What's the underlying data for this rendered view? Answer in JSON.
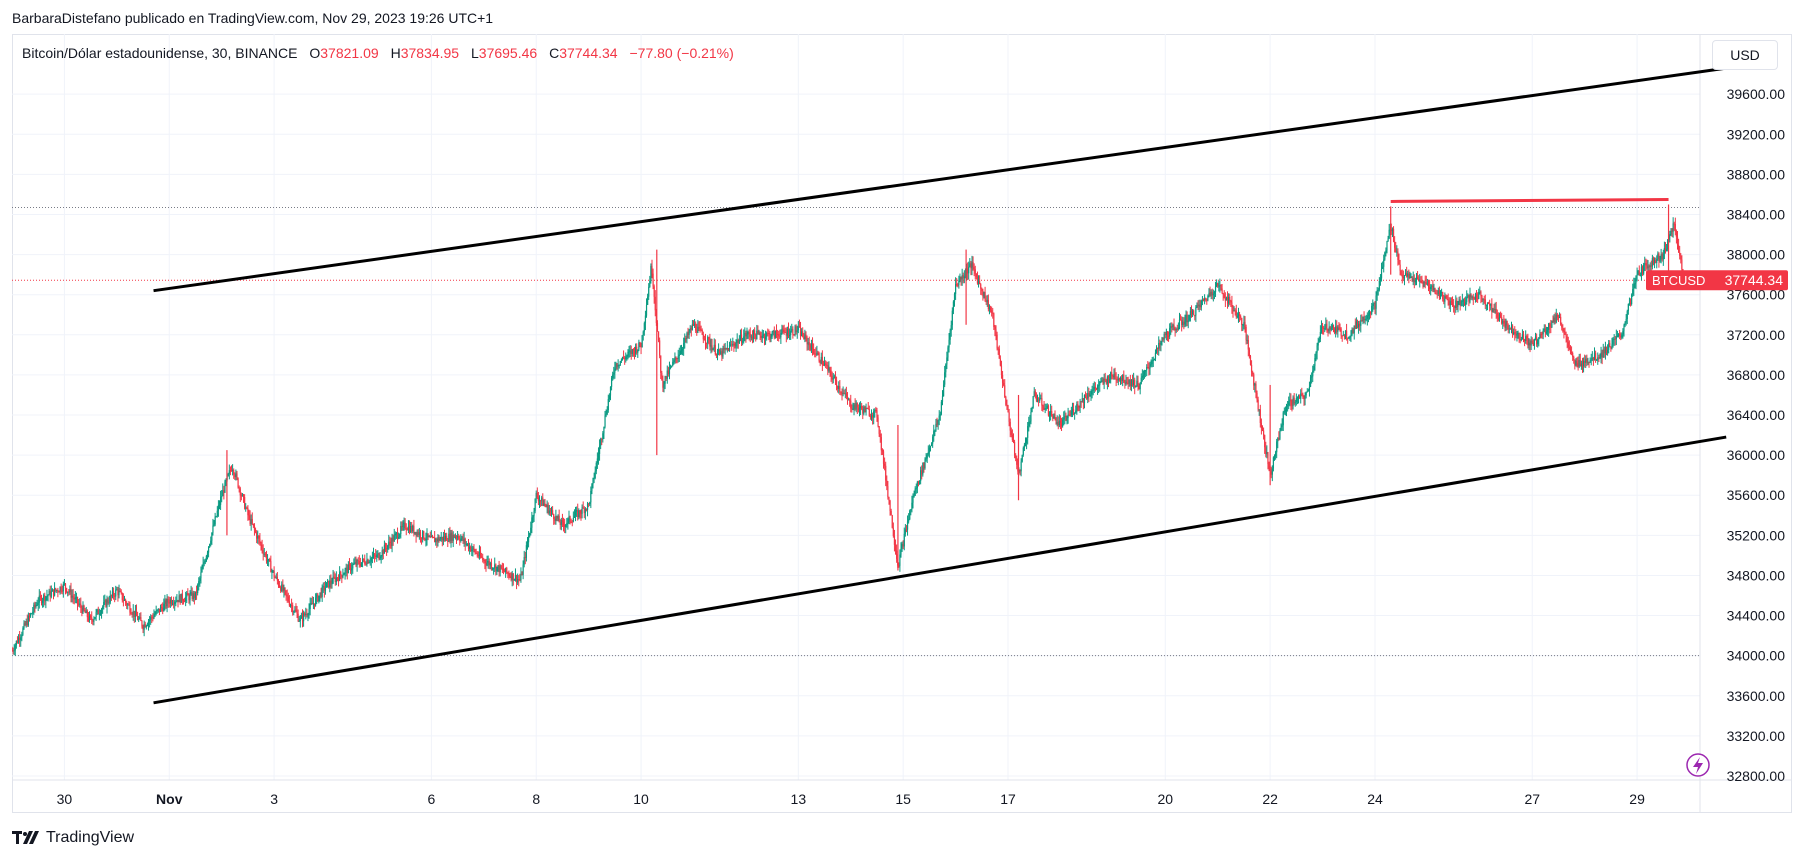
{
  "header": {
    "published_by": "BarbaraDistefano publicado en TradingView.com, Nov 29, 2023 19:26 UTC+1"
  },
  "legend": {
    "symbol": "Bitcoin/Dólar estadounidense, 30, BINANCE",
    "open_label": "O",
    "open": "37821.09",
    "high_label": "H",
    "high": "37834.95",
    "low_label": "L",
    "low": "37695.46",
    "close_label": "C",
    "close": "37744.34",
    "change": "−77.80 (−0.21%)"
  },
  "currency_button": "USD",
  "price_tag": {
    "ticker": "BTCUSD",
    "price": "37744.34"
  },
  "footer": {
    "brand": "TradingView"
  },
  "colors": {
    "up": "#089981",
    "down": "#f23645",
    "trendline": "#000000",
    "resistance": "#f23645",
    "grid": "#f0f3fa",
    "price_line": "#f23645"
  },
  "chart_data": {
    "type": "candlestick",
    "symbol": "BTCUSD",
    "timeframe": "30",
    "y_axis": {
      "ticks": [
        "39600.00",
        "39200.00",
        "38800.00",
        "38400.00",
        "38000.00",
        "37600.00",
        "37200.00",
        "36800.00",
        "36400.00",
        "36000.00",
        "35600.00",
        "35200.00",
        "34800.00",
        "34400.00",
        "34000.00",
        "33600.00",
        "33200.00",
        "32800.00"
      ],
      "range": [
        32760,
        40200
      ]
    },
    "x_axis": {
      "ticks": [
        {
          "label": "30",
          "day": 0
        },
        {
          "label": "Nov",
          "day": 2
        },
        {
          "label": "3",
          "day": 4
        },
        {
          "label": "6",
          "day": 7
        },
        {
          "label": "8",
          "day": 9
        },
        {
          "label": "10",
          "day": 11
        },
        {
          "label": "13",
          "day": 14
        },
        {
          "label": "15",
          "day": 16
        },
        {
          "label": "17",
          "day": 18
        },
        {
          "label": "20",
          "day": 21
        },
        {
          "label": "22",
          "day": 23
        },
        {
          "label": "24",
          "day": 25
        },
        {
          "label": "27",
          "day": 28
        },
        {
          "label": "29",
          "day": 30
        }
      ],
      "range": [
        -1,
        31.2
      ]
    },
    "horizontal_levels": [
      38470,
      37744.34,
      34000
    ],
    "price_path": [
      [
        -1,
        34050
      ],
      [
        -0.5,
        34550
      ],
      [
        0,
        34700
      ],
      [
        0.5,
        34350
      ],
      [
        1,
        34650
      ],
      [
        1.5,
        34300
      ],
      [
        2,
        34550
      ],
      [
        2.5,
        34600
      ],
      [
        3,
        35600
      ],
      [
        3.2,
        35900
      ],
      [
        3.5,
        35400
      ],
      [
        4,
        34800
      ],
      [
        4.5,
        34350
      ],
      [
        5,
        34700
      ],
      [
        5.5,
        34900
      ],
      [
        6,
        35000
      ],
      [
        6.5,
        35300
      ],
      [
        7,
        35150
      ],
      [
        7.5,
        35200
      ],
      [
        8,
        34950
      ],
      [
        8.7,
        34750
      ],
      [
        9,
        35600
      ],
      [
        9.5,
        35300
      ],
      [
        10,
        35500
      ],
      [
        10.5,
        36900
      ],
      [
        11,
        37100
      ],
      [
        11.2,
        37900
      ],
      [
        11.4,
        36700
      ],
      [
        12,
        37300
      ],
      [
        12.5,
        37000
      ],
      [
        13,
        37200
      ],
      [
        13.5,
        37200
      ],
      [
        14,
        37250
      ],
      [
        14.5,
        36900
      ],
      [
        15,
        36500
      ],
      [
        15.5,
        36400
      ],
      [
        15.9,
        34900
      ],
      [
        16.2,
        35600
      ],
      [
        16.7,
        36400
      ],
      [
        17,
        37700
      ],
      [
        17.3,
        37900
      ],
      [
        17.7,
        37400
      ],
      [
        18,
        36400
      ],
      [
        18.2,
        35800
      ],
      [
        18.5,
        36600
      ],
      [
        19,
        36300
      ],
      [
        19.5,
        36600
      ],
      [
        20,
        36800
      ],
      [
        20.5,
        36700
      ],
      [
        21,
        37200
      ],
      [
        21.5,
        37400
      ],
      [
        22,
        37700
      ],
      [
        22.5,
        37300
      ],
      [
        22.8,
        36400
      ],
      [
        23,
        35800
      ],
      [
        23.3,
        36500
      ],
      [
        23.7,
        36600
      ],
      [
        24,
        37300
      ],
      [
        24.5,
        37200
      ],
      [
        25,
        37500
      ],
      [
        25.3,
        38300
      ],
      [
        25.5,
        37800
      ],
      [
        26,
        37700
      ],
      [
        26.5,
        37500
      ],
      [
        27,
        37600
      ],
      [
        27.5,
        37300
      ],
      [
        28,
        37100
      ],
      [
        28.5,
        37400
      ],
      [
        28.8,
        36900
      ],
      [
        29.3,
        37000
      ],
      [
        29.7,
        37200
      ],
      [
        30,
        37800
      ],
      [
        30.2,
        37900
      ],
      [
        30.5,
        38000
      ],
      [
        30.7,
        38300
      ],
      [
        30.9,
        37744.34
      ]
    ],
    "trendlines": [
      {
        "name": "channel-upper",
        "from": [
          1.7,
          37640
        ],
        "to": [
          31.7,
          39860
        ]
      },
      {
        "name": "channel-lower",
        "from": [
          1.7,
          33530
        ],
        "to": [
          31.7,
          36180
        ]
      }
    ],
    "resistance_line": {
      "from": [
        25.3,
        38530
      ],
      "to": [
        30.6,
        38550
      ]
    }
  }
}
